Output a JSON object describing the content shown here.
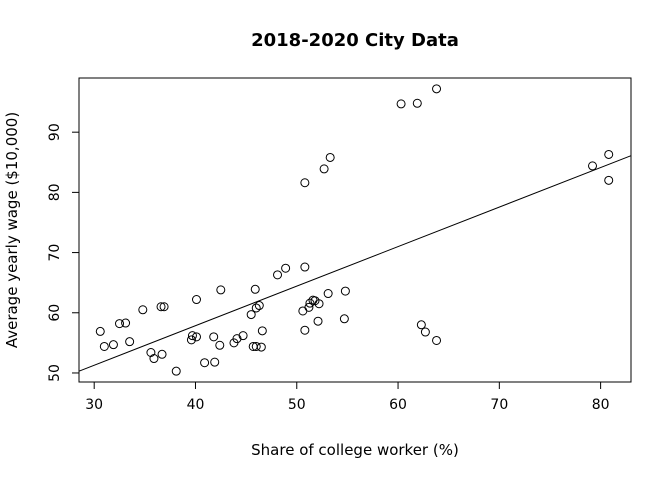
{
  "chart_data": {
    "type": "scatter",
    "title": "2018-2020 City Data",
    "xlabel": "Share of college worker (%)",
    "ylabel": "Average yearly wage ($10,000)",
    "xlim": [
      28.5,
      83
    ],
    "ylim": [
      48.5,
      99
    ],
    "xticks": [
      "30",
      "40",
      "50",
      "60",
      "70",
      "80"
    ],
    "yticks": [
      "50",
      "60",
      "70",
      "80",
      "90"
    ],
    "grid": false,
    "points": [
      {
        "x": 30.6,
        "y": 56.9
      },
      {
        "x": 31.0,
        "y": 54.4
      },
      {
        "x": 31.9,
        "y": 54.7
      },
      {
        "x": 32.5,
        "y": 58.2
      },
      {
        "x": 33.1,
        "y": 58.3
      },
      {
        "x": 33.5,
        "y": 55.2
      },
      {
        "x": 34.8,
        "y": 60.5
      },
      {
        "x": 35.6,
        "y": 53.4
      },
      {
        "x": 35.9,
        "y": 52.4
      },
      {
        "x": 36.6,
        "y": 61.0
      },
      {
        "x": 36.9,
        "y": 61.0
      },
      {
        "x": 36.7,
        "y": 53.1
      },
      {
        "x": 38.1,
        "y": 50.3
      },
      {
        "x": 39.6,
        "y": 55.5
      },
      {
        "x": 39.7,
        "y": 56.2
      },
      {
        "x": 40.1,
        "y": 56.0
      },
      {
        "x": 40.1,
        "y": 62.2
      },
      {
        "x": 40.9,
        "y": 51.7
      },
      {
        "x": 41.8,
        "y": 56.0
      },
      {
        "x": 41.9,
        "y": 51.8
      },
      {
        "x": 42.4,
        "y": 54.6
      },
      {
        "x": 42.5,
        "y": 63.8
      },
      {
        "x": 43.8,
        "y": 55.0
      },
      {
        "x": 44.1,
        "y": 55.7
      },
      {
        "x": 44.7,
        "y": 56.2
      },
      {
        "x": 45.5,
        "y": 59.7
      },
      {
        "x": 45.7,
        "y": 54.4
      },
      {
        "x": 45.9,
        "y": 63.9
      },
      {
        "x": 46.0,
        "y": 54.4
      },
      {
        "x": 46.0,
        "y": 60.8
      },
      {
        "x": 46.3,
        "y": 61.2
      },
      {
        "x": 46.5,
        "y": 54.3
      },
      {
        "x": 46.6,
        "y": 57.0
      },
      {
        "x": 48.1,
        "y": 66.3
      },
      {
        "x": 48.9,
        "y": 67.4
      },
      {
        "x": 50.6,
        "y": 60.3
      },
      {
        "x": 50.8,
        "y": 67.6
      },
      {
        "x": 50.8,
        "y": 57.1
      },
      {
        "x": 50.8,
        "y": 81.6
      },
      {
        "x": 51.2,
        "y": 60.9
      },
      {
        "x": 51.3,
        "y": 61.6
      },
      {
        "x": 51.6,
        "y": 62.1
      },
      {
        "x": 51.8,
        "y": 62.0
      },
      {
        "x": 52.1,
        "y": 58.6
      },
      {
        "x": 52.2,
        "y": 61.5
      },
      {
        "x": 52.7,
        "y": 83.9
      },
      {
        "x": 53.1,
        "y": 63.2
      },
      {
        "x": 53.3,
        "y": 85.8
      },
      {
        "x": 54.7,
        "y": 59.0
      },
      {
        "x": 54.8,
        "y": 63.6
      },
      {
        "x": 60.3,
        "y": 94.7
      },
      {
        "x": 61.9,
        "y": 94.8
      },
      {
        "x": 62.3,
        "y": 58.0
      },
      {
        "x": 62.7,
        "y": 56.8
      },
      {
        "x": 63.8,
        "y": 97.2
      },
      {
        "x": 63.8,
        "y": 55.4
      },
      {
        "x": 79.2,
        "y": 84.4
      },
      {
        "x": 80.8,
        "y": 86.3
      },
      {
        "x": 80.8,
        "y": 82.0
      }
    ],
    "trend_line": {
      "x": [
        28.5,
        83
      ],
      "y": [
        50.3,
        86.1
      ]
    }
  }
}
